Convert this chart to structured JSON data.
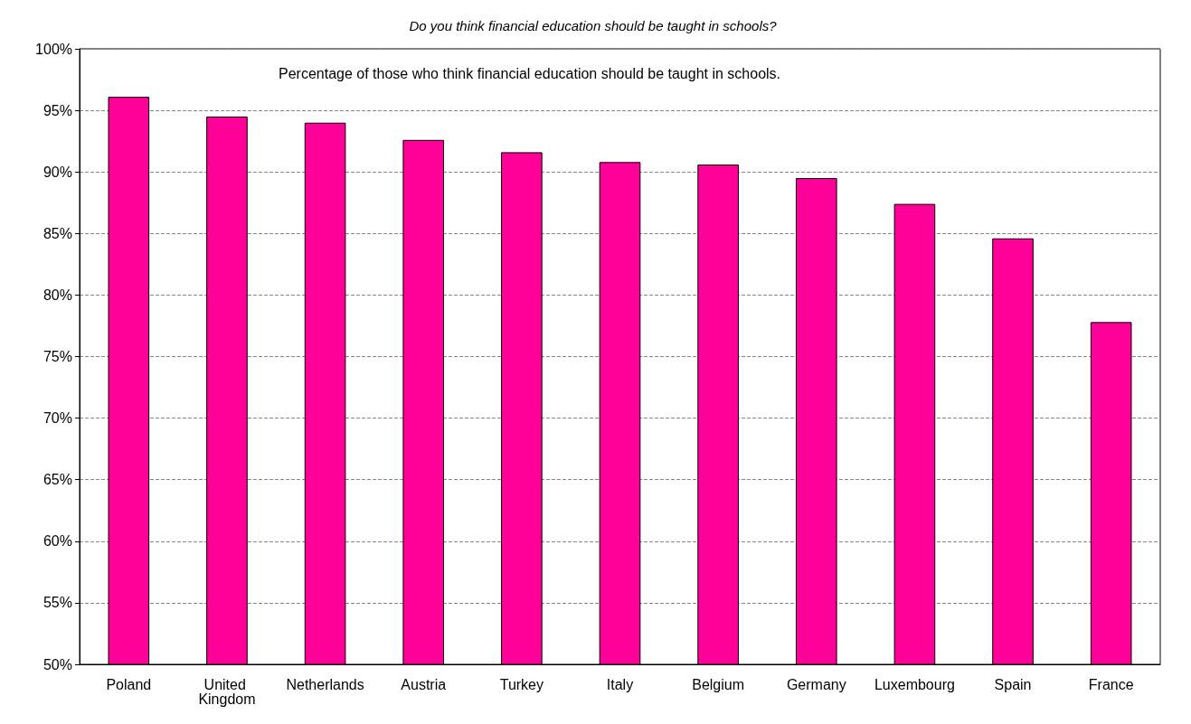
{
  "chart_data": {
    "type": "bar",
    "title": "Do you think financial education should be taught in schools?",
    "annotations": [
      "Percentage of those who think financial education should be taught in schools."
    ],
    "categories": [
      "Poland",
      "United Kingdom",
      "Netherlands",
      "Austria",
      "Turkey",
      "Italy",
      "Belgium",
      "Germany",
      "Luxembourg",
      "Spain",
      "France"
    ],
    "values": [
      96.1,
      94.5,
      94.0,
      92.6,
      91.6,
      90.8,
      90.6,
      89.5,
      87.4,
      84.6,
      77.8
    ],
    "color": "#ff0099",
    "ylim": [
      50,
      100
    ],
    "yticks": [
      {
        "value": 50,
        "label": "50%"
      },
      {
        "value": 55,
        "label": "55%"
      },
      {
        "value": 60,
        "label": "60%"
      },
      {
        "value": 65,
        "label": "65%"
      },
      {
        "value": 70,
        "label": "70%"
      },
      {
        "value": 75,
        "label": "75%"
      },
      {
        "value": 80,
        "label": "80%"
      },
      {
        "value": 85,
        "label": "85%"
      },
      {
        "value": 90,
        "label": "90%"
      },
      {
        "value": 95,
        "label": "95%"
      },
      {
        "value": 100,
        "label": "100%"
      }
    ],
    "grid": "y"
  }
}
